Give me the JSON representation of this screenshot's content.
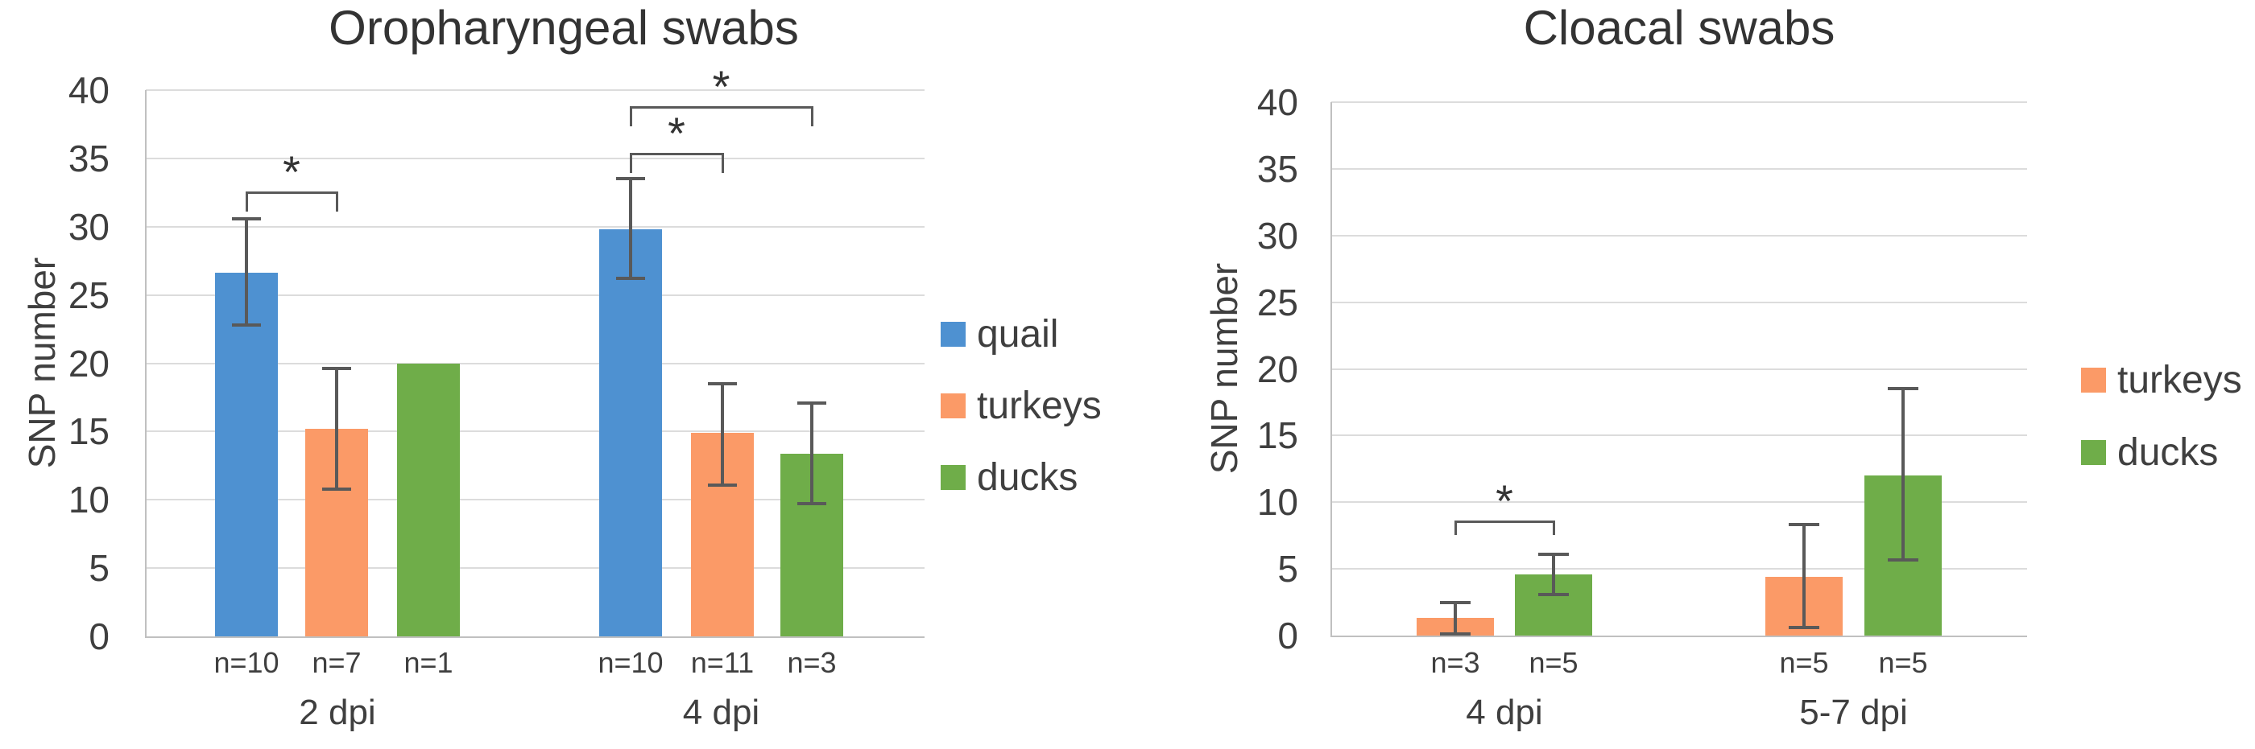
{
  "chart_data": [
    {
      "type": "bar",
      "title": "Oropharyngeal swabs",
      "ylabel": "SNP number",
      "ylim": [
        0,
        40
      ],
      "ytick_step": 5,
      "grid": true,
      "legend_position": "right",
      "categories": [
        "2 dpi",
        "4 dpi"
      ],
      "series": [
        {
          "name": "quail",
          "color": "#4E91D1",
          "values": [
            26.6,
            29.8
          ],
          "err_low": [
            22.8,
            26.2
          ],
          "err_high": [
            30.6,
            33.5
          ],
          "n_labels": [
            "n=10",
            "n=10"
          ]
        },
        {
          "name": "turkeys",
          "color": "#FB9A67",
          "values": [
            15.2,
            14.9
          ],
          "err_low": [
            10.8,
            11.1
          ],
          "err_high": [
            19.6,
            18.5
          ],
          "n_labels": [
            "n=7",
            "n=11"
          ]
        },
        {
          "name": "ducks",
          "color": "#6FAD49",
          "values": [
            20,
            13.4
          ],
          "err_low": [
            null,
            9.7
          ],
          "err_high": [
            null,
            17.1
          ],
          "n_labels": [
            "n=1",
            "n=3"
          ]
        }
      ],
      "significance": [
        {
          "category": 0,
          "between": [
            "quail",
            "turkeys"
          ],
          "bracket_y": 32.6,
          "label": "*"
        },
        {
          "category": 1,
          "between": [
            "quail",
            "turkeys"
          ],
          "bracket_y": 35.4,
          "label": "*"
        },
        {
          "category": 1,
          "between": [
            "quail",
            "ducks"
          ],
          "bracket_y": 38.8,
          "label": "*"
        }
      ]
    },
    {
      "type": "bar",
      "title": "Cloacal swabs",
      "ylabel": "SNP number",
      "ylim": [
        0,
        40
      ],
      "ytick_step": 5,
      "grid": true,
      "legend_position": "right",
      "categories": [
        "4 dpi",
        "5-7 dpi"
      ],
      "series": [
        {
          "name": "turkeys",
          "color": "#FB9A67",
          "values": [
            1.3,
            4.4
          ],
          "err_low": [
            0.1,
            0.6
          ],
          "err_high": [
            2.5,
            8.3
          ],
          "n_labels": [
            "n=3",
            "n=5"
          ]
        },
        {
          "name": "ducks",
          "color": "#6FAD49",
          "values": [
            4.6,
            12
          ],
          "err_low": [
            3.1,
            5.7
          ],
          "err_high": [
            6.1,
            18.5
          ],
          "n_labels": [
            "n=5",
            "n=5"
          ]
        }
      ],
      "significance": [
        {
          "category": 0,
          "between": [
            "turkeys",
            "ducks"
          ],
          "bracket_y": 8.6,
          "label": "*"
        }
      ]
    }
  ]
}
